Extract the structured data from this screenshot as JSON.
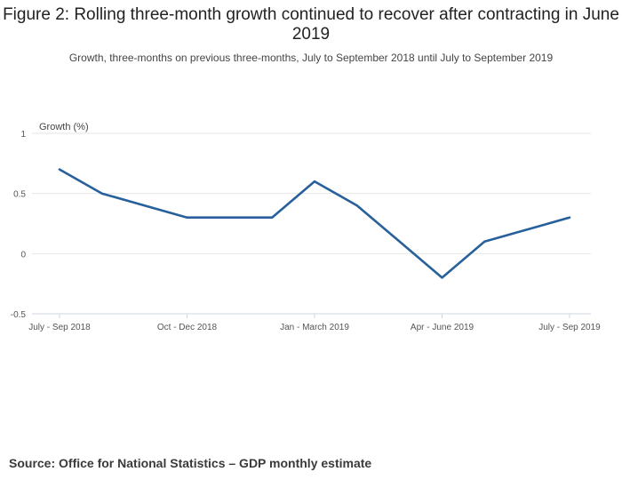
{
  "title": "Figure 2: Rolling three-month growth continued to recover after contracting in June 2019",
  "subtitle": "Growth, three-months on previous three-months, July to September 2018 until July to September 2019",
  "source": "Source: Office for National Statistics – GDP monthly estimate",
  "chart_data": {
    "type": "line",
    "title": "Figure 2: Rolling three-month growth continued to recover after contracting in June 2019",
    "xlabel": "",
    "ylabel": "Growth (%)",
    "ylim": [
      -0.5,
      1
    ],
    "yticks": [
      -0.5,
      0,
      0.5,
      1
    ],
    "ytick_labels": [
      "-0.5",
      "0",
      "0.5",
      "1"
    ],
    "x_tick_labels": [
      "July - Sep 2018",
      "Oct - Dec 2018",
      "Jan - March 2019",
      "Apr - June 2019",
      "July - Sep 2019"
    ],
    "x_tick_indices": [
      0,
      3,
      6,
      9,
      12
    ],
    "grid": true,
    "series": [
      {
        "name": "Growth",
        "color": "#27609a",
        "values": [
          0.7,
          0.5,
          0.4,
          0.3,
          0.3,
          0.3,
          0.6,
          0.4,
          0.1,
          -0.2,
          0.1,
          0.2,
          0.3
        ]
      }
    ]
  }
}
